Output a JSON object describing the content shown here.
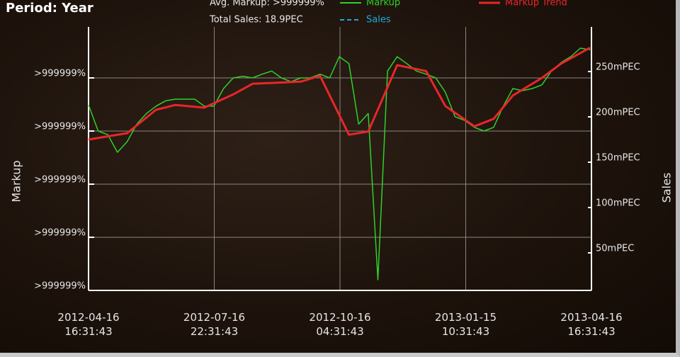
{
  "chart_data": {
    "type": "line",
    "title": "Period: Year",
    "annotations": [
      "Avg. Markup: >999999%",
      "Total Sales: 18.9PEC"
    ],
    "y_label": "Markup",
    "y2_label": "Sales",
    "legend": "top",
    "grid": true,
    "x": [
      "2012-04-16 16:31:43",
      "2012-04-23 16:31:43",
      "2012-04-30 16:31:43",
      "2012-05-07 16:31:43",
      "2012-05-14 16:31:43",
      "2012-05-21 16:31:43",
      "2012-05-28 16:31:43",
      "2012-06-04 16:31:43",
      "2012-06-11 16:31:43",
      "2012-06-18 16:31:43",
      "2012-06-25 16:31:43",
      "2012-07-02 16:31:43",
      "2012-07-09 16:31:43",
      "2012-07-16 16:31:43",
      "2012-07-23 16:31:43",
      "2012-07-30 16:31:43",
      "2012-08-06 16:31:43",
      "2012-08-13 16:31:43",
      "2012-08-20 16:31:43",
      "2012-08-27 16:31:43",
      "2012-09-03 16:31:43",
      "2012-09-10 16:31:43",
      "2012-09-17 16:31:43",
      "2012-09-24 16:31:43",
      "2012-10-01 16:31:43",
      "2012-10-08 16:31:43",
      "2012-10-15 16:31:43",
      "2012-10-22 16:31:43",
      "2012-10-29 16:31:43",
      "2012-11-05 16:31:43",
      "2012-11-12 16:31:43",
      "2012-11-19 16:31:43",
      "2012-11-26 16:31:43",
      "2012-12-03 16:31:43",
      "2012-12-10 16:31:43",
      "2012-12-17 16:31:43",
      "2012-12-24 16:31:43",
      "2012-12-31 16:31:43",
      "2013-01-07 16:31:43",
      "2013-01-14 16:31:43",
      "2013-01-21 16:31:43",
      "2013-01-28 16:31:43",
      "2013-02-04 16:31:43",
      "2013-02-11 16:31:43",
      "2013-02-18 16:31:43",
      "2013-02-25 16:31:43",
      "2013-03-04 16:31:43",
      "2013-03-11 16:31:43",
      "2013-03-18 16:31:43",
      "2013-03-25 16:31:43",
      "2013-04-01 16:31:43",
      "2013-04-08 16:31:43",
      "2013-04-15 16:31:43"
    ],
    "xlim": [
      "2012-04-16 16:31:43",
      "2013-04-16 16:31:43"
    ],
    "xticks": [
      "2012-04-16 16:31:43",
      "2012-07-16 22:31:43",
      "2012-10-16 04:31:43",
      "2013-01-15 10:31:43",
      "2013-04-16 16:31:43"
    ],
    "ylim": [
      0,
      4.96
    ],
    "yticks": [
      {
        "value": 0,
        "label": ">999999%"
      },
      {
        "value": 1,
        "label": ">999999%"
      },
      {
        "value": 2,
        "label": ">999999%"
      },
      {
        "value": 3,
        "label": ">999999%"
      },
      {
        "value": 4,
        "label": ">999999%"
      }
    ],
    "y2lim": [
      8.6,
      299.2
    ],
    "y2ticks": [
      {
        "value": 50,
        "label": "50mPEC"
      },
      {
        "value": 100,
        "label": "100mPEC"
      },
      {
        "value": 150,
        "label": "150mPEC"
      },
      {
        "value": 200,
        "label": "200mPEC"
      },
      {
        "value": 250,
        "label": "250mPEC"
      }
    ],
    "series": [
      {
        "name": "Markup",
        "color": "#2ed12a",
        "style": "solid",
        "values": [
          3.49,
          3.0,
          2.93,
          2.6,
          2.8,
          3.13,
          3.33,
          3.47,
          3.57,
          3.6,
          3.6,
          3.6,
          3.47,
          3.47,
          3.8,
          4.0,
          4.03,
          4.0,
          4.07,
          4.13,
          4.0,
          3.93,
          4.0,
          4.0,
          4.07,
          4.0,
          4.4,
          4.27,
          3.13,
          3.33,
          0.2,
          4.13,
          4.4,
          4.27,
          4.13,
          4.07,
          4.0,
          3.73,
          3.27,
          3.2,
          3.07,
          3.0,
          3.07,
          3.47,
          3.8,
          3.76,
          3.8,
          3.87,
          4.13,
          4.29,
          4.4,
          4.56,
          4.53
        ]
      },
      {
        "name": "Sales",
        "color": "#1ea8d8",
        "style": "dashed",
        "axis": "y2",
        "values": [
          null,
          null,
          null,
          null,
          null,
          null,
          null,
          null,
          null,
          null,
          null,
          null,
          null,
          null,
          null,
          null,
          null,
          null,
          null,
          null,
          null,
          null,
          null,
          null,
          null,
          null,
          null,
          null,
          null,
          null,
          null,
          null,
          null,
          null,
          null,
          null,
          null,
          null,
          null,
          null,
          null,
          null,
          null,
          null,
          null,
          null,
          null,
          null,
          null,
          null,
          null,
          null,
          null
        ]
      },
      {
        "name": "Markup Trend",
        "color": "#e8262a",
        "style": "solid",
        "x": [
          "2012-04-16 16:31:43",
          "2012-05-14 16:31:43",
          "2012-06-04 16:31:43",
          "2012-06-18 16:31:43",
          "2012-07-09 16:31:43",
          "2012-07-30 16:31:43",
          "2012-08-13 16:31:43",
          "2012-09-17 16:31:43",
          "2012-10-01 16:31:43",
          "2012-10-22 16:31:43",
          "2012-11-05 16:31:43",
          "2012-11-26 16:31:43",
          "2012-12-17 16:31:43",
          "2012-12-31 16:31:43",
          "2013-01-21 16:31:43",
          "2013-02-04 16:31:43",
          "2013-02-18 16:31:43",
          "2013-03-11 16:31:43",
          "2013-03-25 16:31:43",
          "2013-04-15 16:31:43"
        ],
        "values": [
          2.84,
          2.96,
          3.4,
          3.49,
          3.44,
          3.69,
          3.89,
          3.93,
          4.04,
          2.93,
          2.99,
          4.24,
          4.13,
          3.47,
          3.09,
          3.23,
          3.67,
          4.0,
          4.27,
          4.57
        ]
      }
    ]
  }
}
